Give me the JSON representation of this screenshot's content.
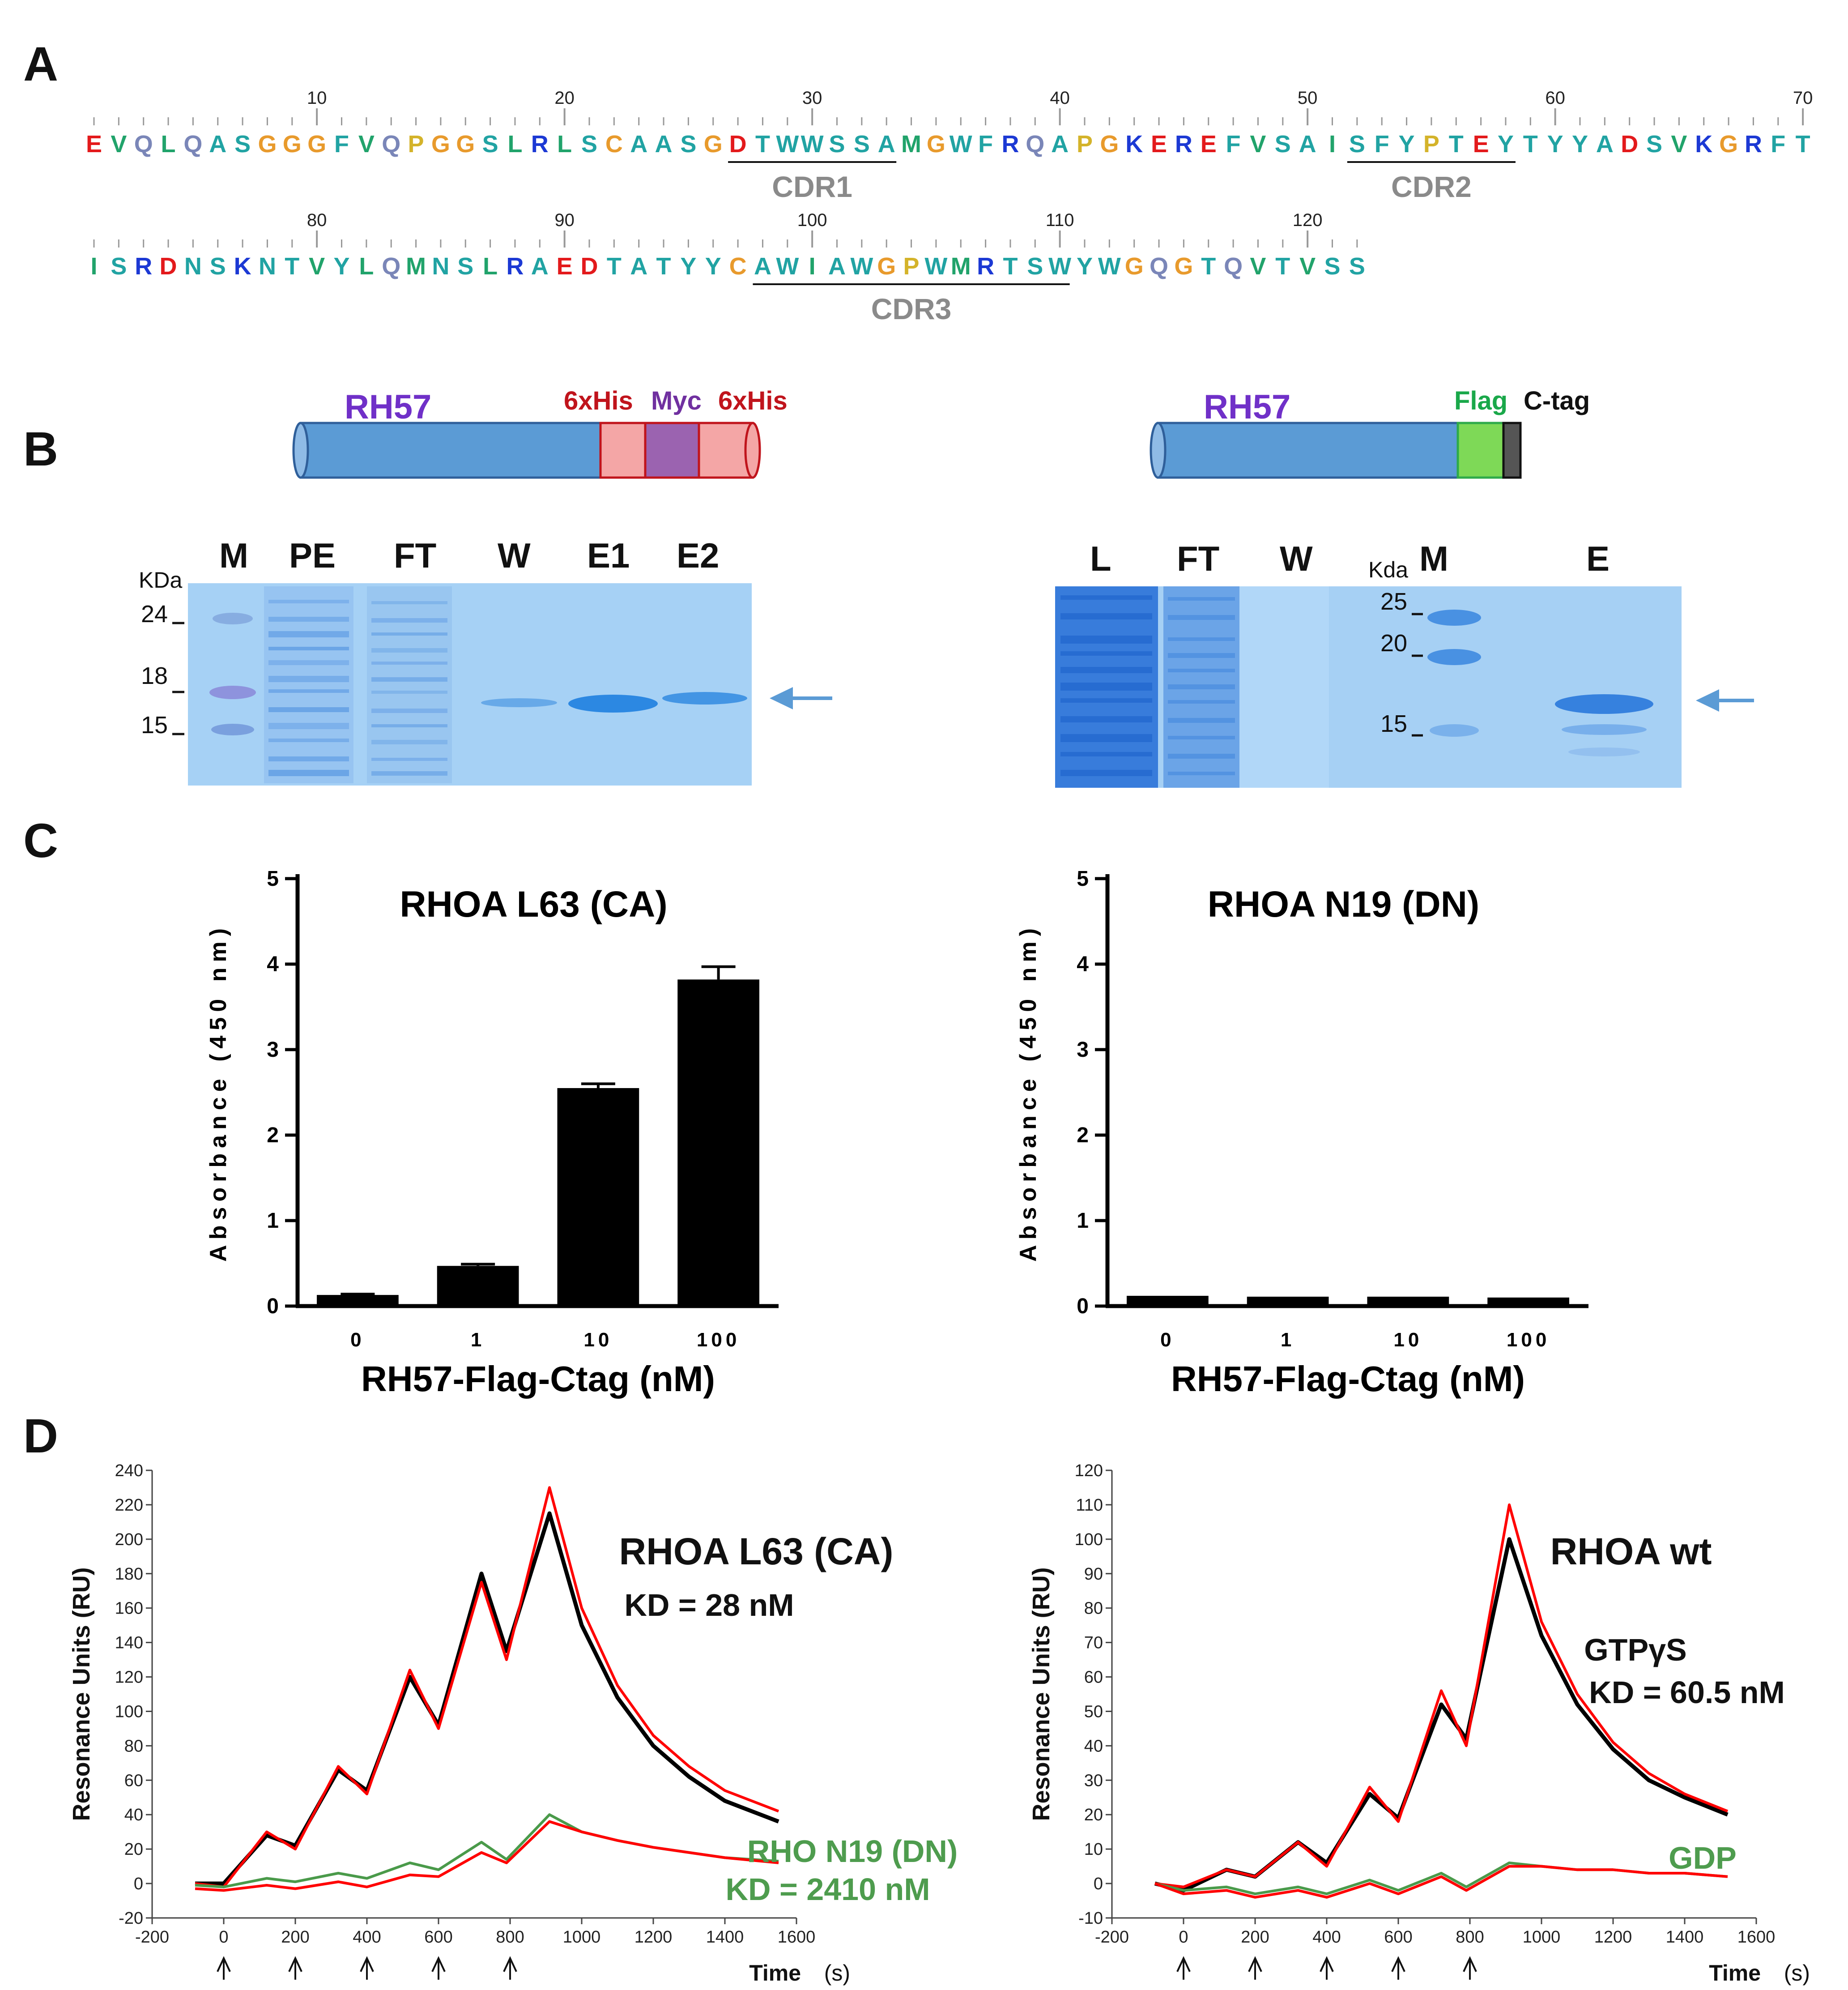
{
  "panel_labels": {
    "a": "A",
    "b": "B",
    "c": "C",
    "d": "D"
  },
  "panel_a": {
    "residues": [
      {
        "aa": "E",
        "c": "#e31a1c"
      },
      {
        "aa": "V",
        "c": "#21a36b"
      },
      {
        "aa": "Q",
        "c": "#7a86b8"
      },
      {
        "aa": "L",
        "c": "#21a36b"
      },
      {
        "aa": "Q",
        "c": "#7a86b8"
      },
      {
        "aa": "A",
        "c": "#21a3a3"
      },
      {
        "aa": "S",
        "c": "#21a3a3"
      },
      {
        "aa": "G",
        "c": "#e89a2c"
      },
      {
        "aa": "G",
        "c": "#e89a2c"
      },
      {
        "aa": "G",
        "c": "#e89a2c"
      },
      {
        "aa": "F",
        "c": "#21a3a3"
      },
      {
        "aa": "V",
        "c": "#21a36b"
      },
      {
        "aa": "Q",
        "c": "#7a86b8"
      },
      {
        "aa": "P",
        "c": "#d4b32a"
      },
      {
        "aa": "G",
        "c": "#e89a2c"
      },
      {
        "aa": "G",
        "c": "#e89a2c"
      },
      {
        "aa": "S",
        "c": "#21a3a3"
      },
      {
        "aa": "L",
        "c": "#21a36b"
      },
      {
        "aa": "R",
        "c": "#1c39d4"
      },
      {
        "aa": "L",
        "c": "#21a36b"
      },
      {
        "aa": "S",
        "c": "#21a3a3"
      },
      {
        "aa": "C",
        "c": "#e89a2c"
      },
      {
        "aa": "A",
        "c": "#21a3a3"
      },
      {
        "aa": "A",
        "c": "#21a3a3"
      },
      {
        "aa": "S",
        "c": "#21a3a3"
      },
      {
        "aa": "G",
        "c": "#e89a2c"
      },
      {
        "aa": "D",
        "c": "#e31a1c"
      },
      {
        "aa": "T",
        "c": "#21a3a3"
      },
      {
        "aa": "W",
        "c": "#21a3a3"
      },
      {
        "aa": "W",
        "c": "#21a3a3"
      },
      {
        "aa": "S",
        "c": "#21a3a3"
      },
      {
        "aa": "S",
        "c": "#21a3a3"
      },
      {
        "aa": "A",
        "c": "#21a3a3"
      },
      {
        "aa": "M",
        "c": "#21a36b"
      },
      {
        "aa": "G",
        "c": "#e89a2c"
      },
      {
        "aa": "W",
        "c": "#21a3a3"
      },
      {
        "aa": "F",
        "c": "#21a3a3"
      },
      {
        "aa": "R",
        "c": "#1c39d4"
      },
      {
        "aa": "Q",
        "c": "#7a86b8"
      },
      {
        "aa": "A",
        "c": "#21a3a3"
      },
      {
        "aa": "P",
        "c": "#d4b32a"
      },
      {
        "aa": "G",
        "c": "#e89a2c"
      },
      {
        "aa": "K",
        "c": "#1c39d4"
      },
      {
        "aa": "E",
        "c": "#e31a1c"
      },
      {
        "aa": "R",
        "c": "#1c39d4"
      },
      {
        "aa": "E",
        "c": "#e31a1c"
      },
      {
        "aa": "F",
        "c": "#21a3a3"
      },
      {
        "aa": "V",
        "c": "#21a36b"
      },
      {
        "aa": "S",
        "c": "#21a3a3"
      },
      {
        "aa": "A",
        "c": "#21a3a3"
      },
      {
        "aa": "I",
        "c": "#21a36b"
      },
      {
        "aa": "S",
        "c": "#21a3a3"
      },
      {
        "aa": "F",
        "c": "#21a3a3"
      },
      {
        "aa": "Y",
        "c": "#21a3a3"
      },
      {
        "aa": "P",
        "c": "#d4b32a"
      },
      {
        "aa": "T",
        "c": "#21a3a3"
      },
      {
        "aa": "E",
        "c": "#e31a1c"
      },
      {
        "aa": "Y",
        "c": "#21a3a3"
      },
      {
        "aa": "T",
        "c": "#21a3a3"
      },
      {
        "aa": "Y",
        "c": "#21a3a3"
      },
      {
        "aa": "Y",
        "c": "#21a3a3"
      },
      {
        "aa": "A",
        "c": "#21a3a3"
      },
      {
        "aa": "D",
        "c": "#e31a1c"
      },
      {
        "aa": "S",
        "c": "#21a3a3"
      },
      {
        "aa": "V",
        "c": "#21a36b"
      },
      {
        "aa": "K",
        "c": "#1c39d4"
      },
      {
        "aa": "G",
        "c": "#e89a2c"
      },
      {
        "aa": "R",
        "c": "#1c39d4"
      },
      {
        "aa": "F",
        "c": "#21a3a3"
      },
      {
        "aa": "T",
        "c": "#21a3a3"
      },
      {
        "aa": "I",
        "c": "#21a36b"
      },
      {
        "aa": "S",
        "c": "#21a3a3"
      },
      {
        "aa": "R",
        "c": "#1c39d4"
      },
      {
        "aa": "D",
        "c": "#e31a1c"
      },
      {
        "aa": "N",
        "c": "#21a3a3"
      },
      {
        "aa": "S",
        "c": "#21a3a3"
      },
      {
        "aa": "K",
        "c": "#1c39d4"
      },
      {
        "aa": "N",
        "c": "#21a3a3"
      },
      {
        "aa": "T",
        "c": "#21a3a3"
      },
      {
        "aa": "V",
        "c": "#21a36b"
      },
      {
        "aa": "Y",
        "c": "#21a3a3"
      },
      {
        "aa": "L",
        "c": "#21a36b"
      },
      {
        "aa": "Q",
        "c": "#7a86b8"
      },
      {
        "aa": "M",
        "c": "#21a36b"
      },
      {
        "aa": "N",
        "c": "#21a3a3"
      },
      {
        "aa": "S",
        "c": "#21a3a3"
      },
      {
        "aa": "L",
        "c": "#21a36b"
      },
      {
        "aa": "R",
        "c": "#1c39d4"
      },
      {
        "aa": "A",
        "c": "#21a3a3"
      },
      {
        "aa": "E",
        "c": "#e31a1c"
      },
      {
        "aa": "D",
        "c": "#e31a1c"
      },
      {
        "aa": "T",
        "c": "#21a3a3"
      },
      {
        "aa": "A",
        "c": "#21a3a3"
      },
      {
        "aa": "T",
        "c": "#21a3a3"
      },
      {
        "aa": "Y",
        "c": "#21a3a3"
      },
      {
        "aa": "Y",
        "c": "#21a3a3"
      },
      {
        "aa": "C",
        "c": "#e89a2c"
      },
      {
        "aa": "A",
        "c": "#21a3a3"
      },
      {
        "aa": "W",
        "c": "#21a3a3"
      },
      {
        "aa": "I",
        "c": "#21a36b"
      },
      {
        "aa": "A",
        "c": "#21a3a3"
      },
      {
        "aa": "W",
        "c": "#21a3a3"
      },
      {
        "aa": "G",
        "c": "#e89a2c"
      },
      {
        "aa": "P",
        "c": "#d4b32a"
      },
      {
        "aa": "W",
        "c": "#21a3a3"
      },
      {
        "aa": "M",
        "c": "#21a36b"
      },
      {
        "aa": "R",
        "c": "#1c39d4"
      },
      {
        "aa": "T",
        "c": "#21a3a3"
      },
      {
        "aa": "S",
        "c": "#21a3a3"
      },
      {
        "aa": "W",
        "c": "#21a3a3"
      },
      {
        "aa": "Y",
        "c": "#21a3a3"
      },
      {
        "aa": "W",
        "c": "#21a3a3"
      },
      {
        "aa": "G",
        "c": "#e89a2c"
      },
      {
        "aa": "Q",
        "c": "#7a86b8"
      },
      {
        "aa": "G",
        "c": "#e89a2c"
      },
      {
        "aa": "T",
        "c": "#21a3a3"
      },
      {
        "aa": "Q",
        "c": "#7a86b8"
      },
      {
        "aa": "V",
        "c": "#21a36b"
      },
      {
        "aa": "T",
        "c": "#21a3a3"
      },
      {
        "aa": "V",
        "c": "#21a36b"
      },
      {
        "aa": "S",
        "c": "#21a3a3"
      },
      {
        "aa": "S",
        "c": "#21a3a3"
      }
    ],
    "ruler_labels": [
      "10",
      "20",
      "30",
      "40",
      "50",
      "60",
      "70",
      "80",
      "90",
      "100",
      "110",
      "120"
    ],
    "cdrs": [
      {
        "label": "CDR1",
        "from": 27,
        "to": 33
      },
      {
        "label": "CDR2",
        "from": 52,
        "to": 58
      },
      {
        "label": "CDR3",
        "from": 98,
        "to": 110
      }
    ]
  },
  "panel_b": {
    "left": {
      "protein": "RH57",
      "tags": [
        "6xHis",
        "Myc",
        "6xHis"
      ],
      "unit": "KDa",
      "lanes": [
        "M",
        "PE",
        "FT",
        "W",
        "E1",
        "E2"
      ],
      "markers": [
        "24",
        "18",
        "15"
      ]
    },
    "right": {
      "protein": "RH57",
      "tags": [
        "Flag",
        "C-tag"
      ],
      "unit": "Kda",
      "lanes": [
        "L",
        "FT",
        "W",
        "M",
        "E"
      ],
      "markers": [
        "25",
        "20",
        "15"
      ]
    }
  },
  "chart_data": [
    {
      "type": "bar",
      "title": "RHOA L63 (CA)",
      "xlabel": "RH57-Flag-Ctag (nM)",
      "ylabel": "Absorbance (450 nm)",
      "categories": [
        "0",
        "1",
        "10",
        "100"
      ],
      "values": [
        0.13,
        0.47,
        2.55,
        3.82
      ],
      "errors": [
        0.01,
        0.02,
        0.05,
        0.15
      ],
      "ylim": [
        0,
        5
      ],
      "yticks": [
        "0",
        "1",
        "2",
        "3",
        "4",
        "5"
      ]
    },
    {
      "type": "bar",
      "title": "RHOA N19 (DN)",
      "xlabel": "RH57-Flag-Ctag (nM)",
      "ylabel": "Absorbance (450 nm)",
      "categories": [
        "0",
        "1",
        "10",
        "100"
      ],
      "values": [
        0.12,
        0.11,
        0.11,
        0.1
      ],
      "errors": [
        0.0,
        0.0,
        0.0,
        0.0
      ],
      "ylim": [
        0,
        5
      ],
      "yticks": [
        "0",
        "1",
        "2",
        "3",
        "4",
        "5"
      ]
    },
    {
      "type": "line",
      "title": "RHOA L63 (CA)",
      "kd": "KD = 28 nM",
      "second_label": "RHO N19  (DN)",
      "second_kd": "KD = 2410 nM",
      "xlabel": "Time",
      "xunit": "(s)",
      "ylabel": "Resonance Units (RU)",
      "xlim": [
        -200,
        1600
      ],
      "ylim": [
        -20,
        240
      ],
      "xticks": [
        "-200",
        "0",
        "200",
        "400",
        "600",
        "800",
        "1000",
        "1200",
        "1400",
        "1600"
      ],
      "yticks": [
        "-20",
        "0",
        "20",
        "40",
        "60",
        "80",
        "100",
        "120",
        "140",
        "160",
        "180",
        "200",
        "220",
        "240"
      ],
      "injection_times": [
        0,
        200,
        400,
        600,
        800
      ],
      "series": [
        {
          "name": "RHOA L63 data",
          "color": "#000000",
          "x": [
            -80,
            0,
            120,
            200,
            320,
            400,
            520,
            600,
            720,
            790,
            910,
            1000,
            1100,
            1200,
            1300,
            1400,
            1550
          ],
          "y": [
            0,
            0,
            28,
            22,
            66,
            54,
            120,
            92,
            180,
            135,
            215,
            150,
            108,
            80,
            62,
            48,
            36
          ]
        },
        {
          "name": "RHOA L63 fit",
          "color": "#ff0000",
          "x": [
            -80,
            0,
            120,
            200,
            320,
            400,
            520,
            600,
            720,
            790,
            910,
            1000,
            1100,
            1200,
            1300,
            1400,
            1550
          ],
          "y": [
            0,
            -2,
            30,
            20,
            68,
            52,
            124,
            90,
            175,
            130,
            230,
            160,
            115,
            86,
            68,
            54,
            42
          ]
        },
        {
          "name": "RHO N19 data",
          "color": "#4a9a4a",
          "x": [
            -80,
            0,
            120,
            200,
            320,
            400,
            520,
            600,
            720,
            790,
            910,
            1000,
            1100,
            1200,
            1300,
            1400,
            1550
          ],
          "y": [
            -1,
            -2,
            3,
            1,
            6,
            3,
            12,
            8,
            24,
            14,
            40,
            30,
            25,
            21,
            18,
            15,
            13
          ]
        },
        {
          "name": "RHO N19 fit",
          "color": "#ff0000",
          "x": [
            -80,
            0,
            120,
            200,
            320,
            400,
            520,
            600,
            720,
            790,
            910,
            1000,
            1100,
            1200,
            1300,
            1400,
            1550
          ],
          "y": [
            -3,
            -4,
            -1,
            -3,
            1,
            -2,
            5,
            4,
            18,
            12,
            36,
            30,
            25,
            21,
            18,
            15,
            12
          ]
        }
      ]
    },
    {
      "type": "line",
      "title": "RHOA wt",
      "second_title": "GTPγS",
      "kd": "KD = 60.5 nM",
      "second_label": "GDP",
      "xlabel": "Time",
      "xunit": "(s)",
      "ylabel": "Resonance Units (RU)",
      "xlim": [
        -200,
        1600
      ],
      "ylim": [
        -10,
        120
      ],
      "xticks": [
        "-200",
        "0",
        "200",
        "400",
        "600",
        "800",
        "1000",
        "1200",
        "1400",
        "1600"
      ],
      "yticks": [
        "-10",
        "0",
        "10",
        "20",
        "30",
        "40",
        "50",
        "60",
        "70",
        "80",
        "90",
        "100",
        "110",
        "120"
      ],
      "injection_times": [
        0,
        200,
        400,
        600,
        800
      ],
      "series": [
        {
          "name": "GTPγS data",
          "color": "#000000",
          "x": [
            -80,
            0,
            120,
            200,
            320,
            400,
            520,
            600,
            720,
            790,
            910,
            1000,
            1100,
            1200,
            1300,
            1400,
            1520
          ],
          "y": [
            0,
            -2,
            4,
            2,
            12,
            6,
            26,
            19,
            52,
            42,
            100,
            72,
            52,
            39,
            30,
            25,
            20
          ]
        },
        {
          "name": "GTPγS fit",
          "color": "#ff0000",
          "x": [
            -80,
            0,
            120,
            200,
            320,
            400,
            520,
            600,
            720,
            790,
            910,
            1000,
            1100,
            1200,
            1300,
            1400,
            1520
          ],
          "y": [
            0,
            -1,
            4,
            2,
            12,
            5,
            28,
            18,
            56,
            40,
            110,
            76,
            55,
            41,
            32,
            26,
            21
          ]
        },
        {
          "name": "GDP data",
          "color": "#4a9a4a",
          "x": [
            -80,
            0,
            120,
            200,
            320,
            400,
            520,
            600,
            720,
            790,
            910,
            1000,
            1100,
            1200,
            1300,
            1400,
            1520
          ],
          "y": [
            0,
            -2,
            -1,
            -3,
            -1,
            -3,
            1,
            -2,
            3,
            -1,
            6,
            5,
            4,
            4,
            3,
            3,
            2
          ]
        },
        {
          "name": "GDP fit",
          "color": "#ff0000",
          "x": [
            -80,
            0,
            120,
            200,
            320,
            400,
            520,
            600,
            720,
            790,
            910,
            1000,
            1100,
            1200,
            1300,
            1400,
            1520
          ],
          "y": [
            0,
            -3,
            -2,
            -4,
            -2,
            -4,
            0,
            -3,
            2,
            -2,
            5,
            5,
            4,
            4,
            3,
            3,
            2
          ]
        }
      ]
    }
  ]
}
